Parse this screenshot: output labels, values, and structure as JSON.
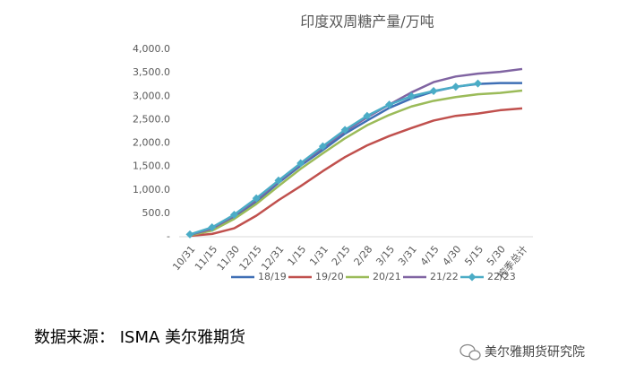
{
  "chart_data": {
    "type": "line",
    "title": "印度双周糖产量/万吨",
    "categories": [
      "10/31",
      "11/15",
      "11/30",
      "12/15",
      "12/31",
      "1/15",
      "1/31",
      "2/15",
      "2/28",
      "3/15",
      "3/31",
      "4/15",
      "4/30",
      "5/15",
      "5/30",
      "榨季总计"
    ],
    "series": [
      {
        "name": "18/19",
        "color": "#3f6fb5",
        "values": [
          40,
          150,
          420,
          750,
          1150,
          1520,
          1850,
          2200,
          2480,
          2750,
          2950,
          3100,
          3200,
          3260,
          3280,
          3280
        ]
      },
      {
        "name": "19/20",
        "color": "#c0504d",
        "values": [
          20,
          60,
          180,
          450,
          780,
          1080,
          1400,
          1700,
          1950,
          2150,
          2320,
          2480,
          2580,
          2630,
          2700,
          2740
        ]
      },
      {
        "name": "20/21",
        "color": "#9bbb59",
        "values": [
          30,
          130,
          380,
          700,
          1080,
          1450,
          1780,
          2100,
          2380,
          2600,
          2780,
          2900,
          2980,
          3040,
          3070,
          3120
        ]
      },
      {
        "name": "21/22",
        "color": "#8064a2",
        "values": [
          40,
          170,
          450,
          780,
          1180,
          1550,
          1900,
          2250,
          2550,
          2820,
          3080,
          3300,
          3420,
          3480,
          3520,
          3580
        ]
      },
      {
        "name": "22/23",
        "color": "#4bacc6",
        "marker": "diamond",
        "values": [
          50,
          200,
          470,
          820,
          1200,
          1570,
          1930,
          2280,
          2580,
          2820,
          3000,
          3110,
          3200,
          3270,
          null,
          null
        ]
      }
    ],
    "ylim": [
      0,
      4000
    ],
    "yticks": [
      {
        "value": 0,
        "label": "-"
      },
      {
        "value": 500,
        "label": "500.0"
      },
      {
        "value": 1000,
        "label": "1,000.0"
      },
      {
        "value": 1500,
        "label": "1,500.0"
      },
      {
        "value": 2000,
        "label": "2,000.0"
      },
      {
        "value": 2500,
        "label": "2,500.0"
      },
      {
        "value": 3000,
        "label": "3,000.0"
      },
      {
        "value": 3500,
        "label": "3,500.0"
      },
      {
        "value": 4000,
        "label": "4,000.0"
      }
    ],
    "grid": false,
    "legend": "bottom"
  },
  "source": "数据来源：  ISMA  美尔雅期货",
  "watermark": "美尔雅期货研究院"
}
